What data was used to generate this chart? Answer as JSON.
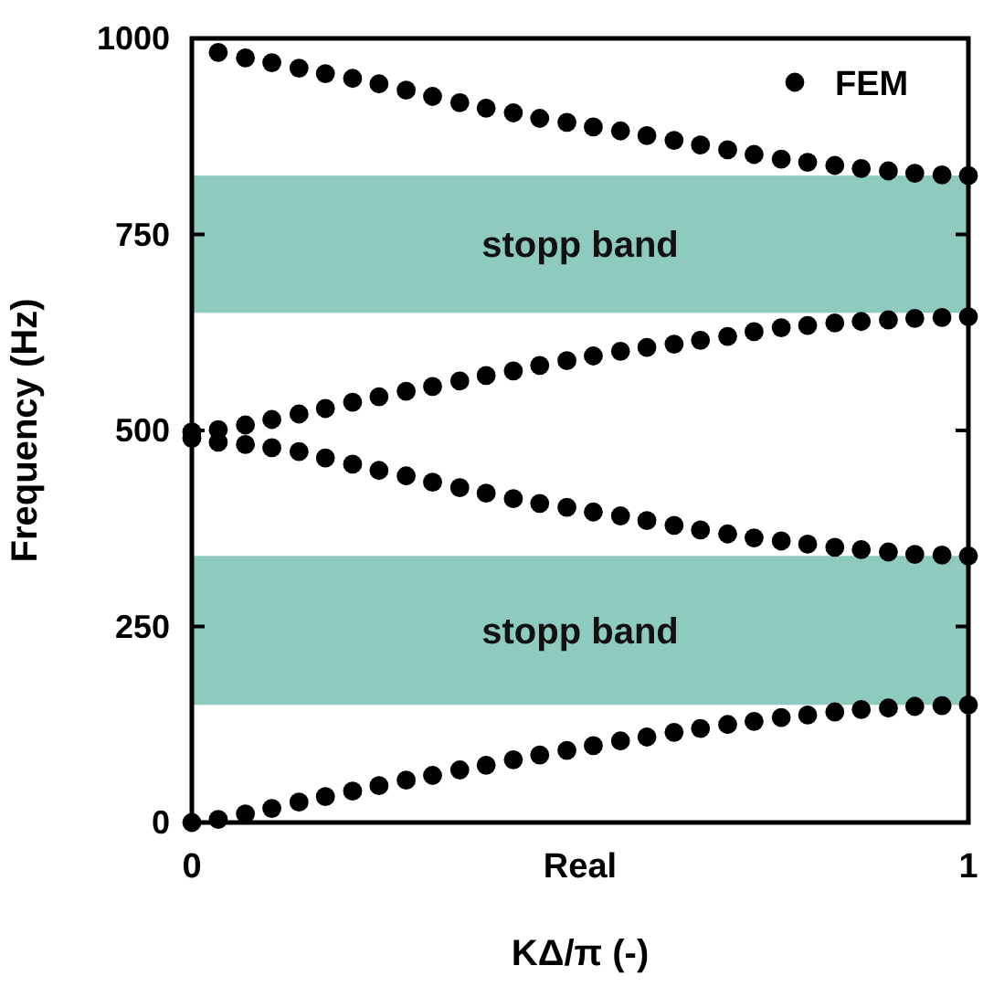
{
  "chart_data": {
    "type": "scatter",
    "xlabel": "KΔ/π (-)",
    "ylabel": "Frequency (Hz)",
    "xlim": [
      0,
      1
    ],
    "xticks": [
      0,
      {
        "value": 0.5,
        "label": "Real"
      },
      1
    ],
    "ylim": [
      0,
      1000
    ],
    "yticks": [
      0,
      250,
      500,
      750,
      1000
    ],
    "grid": false,
    "legend": "top right",
    "marker": "circle",
    "bands": [
      {
        "axis": "y",
        "from": 650,
        "to": 825,
        "label": "stopp band",
        "color": "#8ecabd"
      },
      {
        "axis": "y",
        "from": 150,
        "to": 340,
        "label": "stopp band",
        "color": "#8ecabd"
      }
    ],
    "series": [
      {
        "name": "FEM",
        "color": "#000000",
        "x": [
          0,
          0.034,
          0.069,
          0.103,
          0.138,
          0.172,
          0.207,
          0.241,
          0.276,
          0.31,
          0.345,
          0.379,
          0.414,
          0.448,
          0.483,
          0.517,
          0.552,
          0.586,
          0.621,
          0.655,
          0.69,
          0.724,
          0.759,
          0.793,
          0.828,
          0.862,
          0.897,
          0.931,
          0.966,
          1,
          0,
          0.034,
          0.069,
          0.103,
          0.138,
          0.172,
          0.207,
          0.241,
          0.276,
          0.31,
          0.345,
          0.379,
          0.414,
          0.448,
          0.483,
          0.517,
          0.552,
          0.586,
          0.621,
          0.655,
          0.69,
          0.724,
          0.759,
          0.793,
          0.828,
          0.862,
          0.897,
          0.931,
          0.966,
          1,
          0,
          0.034,
          0.069,
          0.103,
          0.138,
          0.172,
          0.207,
          0.241,
          0.276,
          0.31,
          0.345,
          0.379,
          0.414,
          0.448,
          0.483,
          0.517,
          0.552,
          0.586,
          0.621,
          0.655,
          0.69,
          0.724,
          0.759,
          0.793,
          0.828,
          0.862,
          0.897,
          0.931,
          0.966,
          1,
          0.034,
          0.069,
          0.103,
          0.138,
          0.172,
          0.207,
          0.241,
          0.276,
          0.31,
          0.345,
          0.379,
          0.414,
          0.448,
          0.483,
          0.517,
          0.552,
          0.586,
          0.621,
          0.655,
          0.69,
          0.724,
          0.759,
          0.793,
          0.828,
          0.862,
          0.897,
          0.931,
          0.966,
          1
        ],
        "values": [
          0,
          4,
          11,
          18,
          26,
          33,
          40,
          47,
          54,
          60,
          67,
          73,
          80,
          86,
          92,
          98,
          104,
          109,
          115,
          120,
          125,
          129,
          134,
          137,
          141,
          144,
          146,
          148,
          149,
          150,
          490,
          485,
          482,
          478,
          473,
          465,
          457,
          449,
          442,
          434,
          427,
          420,
          413,
          407,
          402,
          396,
          391,
          385,
          379,
          373,
          368,
          363,
          359,
          355,
          351,
          348,
          345,
          342,
          341,
          340,
          498,
          501,
          507,
          514,
          521,
          528,
          536,
          543,
          550,
          556,
          563,
          570,
          576,
          583,
          589,
          595,
          601,
          606,
          610,
          615,
          620,
          626,
          631,
          634,
          637,
          639,
          641,
          643,
          644,
          645,
          982,
          975,
          969,
          962,
          955,
          949,
          942,
          934,
          926,
          918,
          911,
          905,
          898,
          893,
          887,
          882,
          876,
          870,
          864,
          858,
          852,
          846,
          842,
          838,
          834,
          831,
          828,
          826,
          825
        ]
      }
    ]
  }
}
